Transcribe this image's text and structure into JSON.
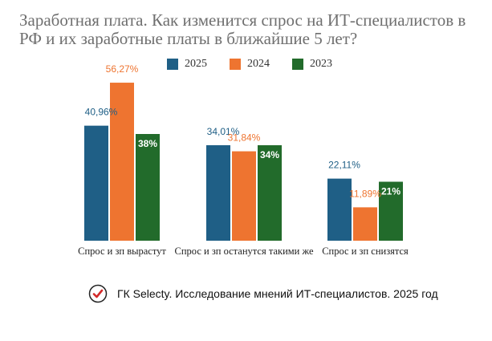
{
  "chart_data": {
    "type": "bar",
    "title": "Заработная плата. Как изменится спрос на ИТ-специалистов в РФ и их заработные платы в ближайшие 5 лет?",
    "categories": [
      "Спрос и зп вырастут",
      "Спрос и зп останутся такими же",
      "Спрос и зп снизятся"
    ],
    "series": [
      {
        "name": "2025",
        "color": "#1f5f86",
        "values": [
          40.96,
          34.01,
          22.11
        ],
        "labels": [
          "40,96%",
          "34,01%",
          "22,11%"
        ]
      },
      {
        "name": "2024",
        "color": "#ee7430",
        "values": [
          56.27,
          31.84,
          11.89
        ],
        "labels": [
          "56,27%",
          "31,84%",
          "11,89%"
        ]
      },
      {
        "name": "2023",
        "color": "#226b2b",
        "values": [
          38,
          34,
          21
        ],
        "labels": [
          "38%",
          "34%",
          "21%"
        ]
      }
    ],
    "ylim": [
      0,
      60
    ],
    "grid": false,
    "legend_position": "top-center"
  },
  "footer": {
    "icon": "check-circle-icon",
    "text": "ГК Selecty. Исследование мнений ИТ-специалистов. 2025 год",
    "icon_color": "#d32a2a"
  }
}
